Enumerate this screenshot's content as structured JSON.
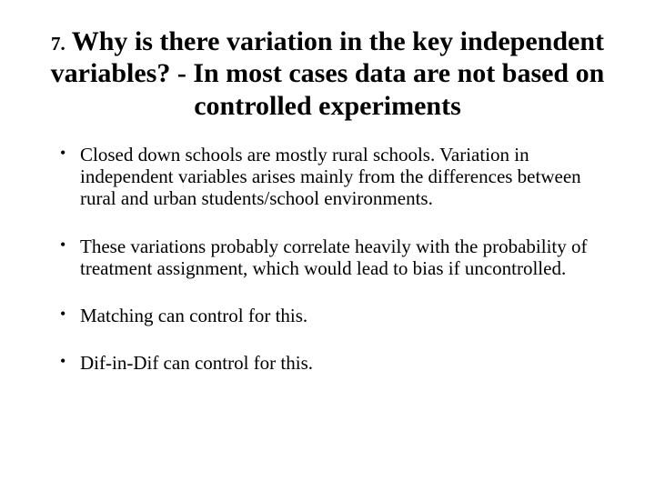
{
  "title": {
    "prefix": "7.",
    "text": "Why is there variation in the key independent variables? - In most cases data are not based on controlled experiments"
  },
  "bullets": [
    "Closed down schools are mostly rural schools. Variation in independent variables arises mainly from the differences between rural and urban students/school environments.",
    "These variations probably correlate heavily with the probability of treatment assignment, which would lead to bias if uncontrolled.",
    "Matching can control for this.",
    "Dif-in-Dif can control for this."
  ],
  "colors": {
    "background": "#ffffff",
    "text": "#000000"
  },
  "typography": {
    "title_fontsize": 30,
    "prefix_fontsize": 21,
    "body_fontsize": 21,
    "font_family": "Georgia, serif"
  }
}
